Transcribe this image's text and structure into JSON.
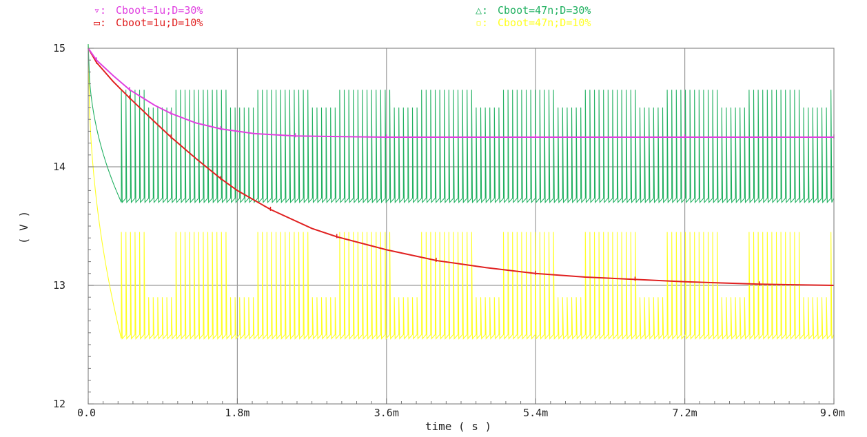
{
  "chart_data": {
    "type": "line",
    "xlabel": "time ( s )",
    "ylabel": "( V )",
    "xlim": [
      0,
      0.009
    ],
    "ylim": [
      12,
      15
    ],
    "x_ticks": [
      0,
      0.0018,
      0.0036,
      0.0054,
      0.0072,
      0.009
    ],
    "x_tick_labels": [
      "0.0",
      "1.8m",
      "3.6m",
      "5.4m",
      "7.2m",
      "9.0m"
    ],
    "y_ticks": [
      12,
      13,
      14,
      15
    ],
    "y_tick_labels": [
      "12",
      "13",
      "14",
      "15"
    ],
    "grid": true,
    "legend_placement": "top",
    "series": [
      {
        "name": "Cboot=1u;D=30%",
        "marker": "▿:",
        "color": "#e040e0",
        "kind": "smooth",
        "x": [
          0,
          0.0001,
          0.0003,
          0.0005,
          0.0008,
          0.001,
          0.0013,
          0.0016,
          0.002,
          0.0025,
          0.003,
          0.0036,
          0.0045,
          0.0054,
          0.0063,
          0.0072,
          0.0081,
          0.009
        ],
        "y": [
          15.0,
          14.9,
          14.77,
          14.65,
          14.52,
          14.45,
          14.37,
          14.32,
          14.28,
          14.26,
          14.255,
          14.25,
          14.25,
          14.25,
          14.25,
          14.25,
          14.25,
          14.25
        ]
      },
      {
        "name": "Cboot=1u;D=10%",
        "marker": "▭:",
        "color": "#e02020",
        "kind": "smooth",
        "x": [
          0,
          0.0001,
          0.0003,
          0.0005,
          0.0008,
          0.001,
          0.0013,
          0.0016,
          0.0018,
          0.0022,
          0.0027,
          0.003,
          0.0036,
          0.0042,
          0.0048,
          0.0054,
          0.006,
          0.0066,
          0.0072,
          0.0081,
          0.009
        ],
        "y": [
          15.0,
          14.88,
          14.72,
          14.58,
          14.38,
          14.25,
          14.07,
          13.9,
          13.8,
          13.64,
          13.48,
          13.41,
          13.3,
          13.21,
          13.15,
          13.1,
          13.07,
          13.05,
          13.03,
          13.01,
          13.0
        ]
      },
      {
        "name": "Cboot=47n;D=30%",
        "marker": "△:",
        "color": "#20b060",
        "kind": "ripple",
        "low": 13.7,
        "high": 14.65,
        "high_alt": 14.5,
        "start": 15.0
      },
      {
        "name": "Cboot=47n;D=10%",
        "marker": "▫:",
        "color": "#ffff20",
        "kind": "ripple",
        "low": 12.55,
        "high": 13.45,
        "high_alt": 12.9,
        "start": 15.0
      }
    ]
  }
}
